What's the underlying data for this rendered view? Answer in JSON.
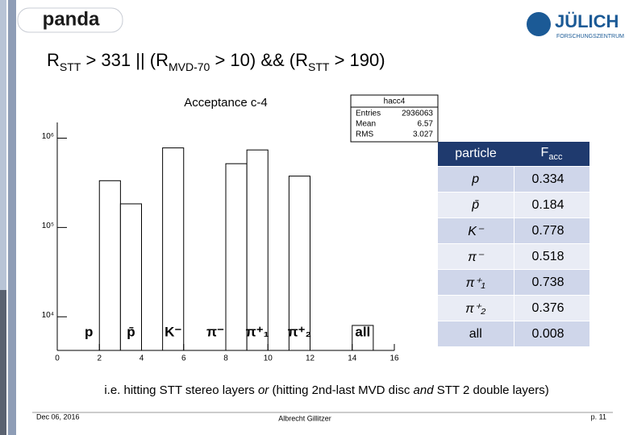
{
  "header": {
    "left_logo": "panda",
    "right_logo": "JÜLICH",
    "right_logo_sub": "FORSCHUNGSZENTRUM",
    "title_parts": [
      "R",
      "STT",
      " > 331 || (R",
      "MVD-70",
      " > 10) && (R",
      "STT",
      " > 190)"
    ]
  },
  "chart_data": {
    "type": "histogram",
    "title": "Acceptance c-4",
    "bins": [
      0,
      1,
      2,
      3,
      4,
      5,
      6,
      7,
      8,
      9,
      10,
      11,
      12,
      13,
      14,
      15,
      16
    ],
    "values": [
      0,
      0,
      334000,
      184000,
      0,
      778000,
      0,
      0,
      518000,
      738000,
      0,
      376000,
      0,
      0,
      8000,
      0
    ],
    "color": "#ffffff",
    "edge_color": "#000000",
    "xlim": [
      0,
      16
    ],
    "xticks": [
      0,
      2,
      4,
      6,
      8,
      10,
      12,
      14,
      16
    ],
    "ylim": [
      4200,
      1500000
    ],
    "yticks": [
      {
        "value": 10000,
        "label": "10⁴"
      },
      {
        "value": 100000,
        "label": "10⁵"
      },
      {
        "value": 1000000,
        "label": "10⁶"
      }
    ],
    "log_y": true,
    "annotations": [
      {
        "text": "p",
        "x": 1.5
      },
      {
        "text": "p̄",
        "x": 3.5
      },
      {
        "text": "K⁻",
        "x": 5.5
      },
      {
        "text": "π⁻",
        "x": 7.5
      },
      {
        "text": "π⁺₁",
        "x": 9.5
      },
      {
        "text": "π⁺₂",
        "x": 11.5
      },
      {
        "text": "all",
        "x": 14.5
      }
    ],
    "stats": {
      "name": "hacc4",
      "rows": [
        [
          "Entries",
          "2936063"
        ],
        [
          "Mean",
          "6.57"
        ],
        [
          "RMS",
          "3.027"
        ]
      ]
    }
  },
  "table": {
    "header": [
      "particle",
      {
        "main": "F",
        "sub": "acc"
      }
    ],
    "rows": [
      [
        "p",
        "0.334"
      ],
      [
        "p̄",
        "0.184"
      ],
      [
        "K⁻",
        "0.778"
      ],
      [
        "π⁻",
        "0.518"
      ],
      [
        "π⁺₁",
        "0.738"
      ],
      [
        "π⁺₂",
        "0.376"
      ],
      [
        "all",
        "0.008"
      ]
    ]
  },
  "caption_parts": [
    {
      "text": "i.e. hitting STT stereo layers "
    },
    {
      "text": "or",
      "italic": true
    },
    {
      "text": " (hitting 2nd-last MVD disc "
    },
    {
      "text": "and",
      "italic": true
    },
    {
      "text": " STT 2 double layers)"
    }
  ],
  "footer": {
    "date": "Dec 06, 2016",
    "author": "Albrecht Gillitzer",
    "page": "p. 11"
  }
}
